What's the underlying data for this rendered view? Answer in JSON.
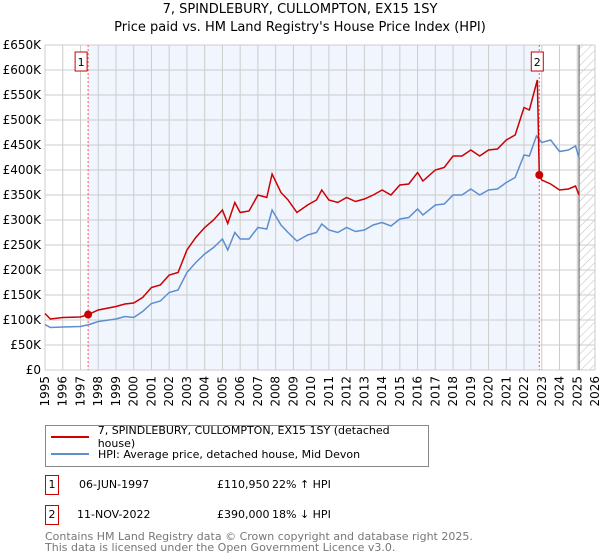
{
  "chart_data": {
    "type": "line",
    "title": "7, SPINDLEBURY, CULLOMPTON, EX15 1SY",
    "subtitle": "Price paid vs. HM Land Registry's House Price Index (HPI)",
    "xlim": [
      1995,
      2026
    ],
    "ylim": [
      0,
      650000
    ],
    "x_ticks": [
      "1995",
      "1996",
      "1997",
      "1998",
      "1999",
      "2000",
      "2001",
      "2002",
      "2003",
      "2004",
      "2005",
      "2006",
      "2007",
      "2008",
      "2009",
      "2010",
      "2011",
      "2012",
      "2013",
      "2014",
      "2015",
      "2016",
      "2017",
      "2018",
      "2019",
      "2020",
      "2021",
      "2022",
      "2023",
      "2024",
      "2025",
      "2026"
    ],
    "y_ticks": [
      "£0",
      "£50K",
      "£100K",
      "£150K",
      "£200K",
      "£250K",
      "£300K",
      "£350K",
      "£400K",
      "£450K",
      "£500K",
      "£550K",
      "£600K",
      "£650K"
    ],
    "grid": true,
    "legend_position": "bottom",
    "series": [
      {
        "name": "7, SPINDLEBURY, CULLOMPTON, EX15 1SY (detached house)",
        "color": "#cc0000",
        "x": [
          1995,
          1995.3,
          1996,
          1997,
          1997.43,
          1998,
          1999,
          1999.5,
          2000,
          2000.5,
          2001,
          2001.5,
          2002,
          2002.5,
          2003,
          2003.5,
          2004,
          2004.5,
          2005,
          2005.3,
          2005.7,
          2006,
          2006.5,
          2007,
          2007.5,
          2007.8,
          2008.3,
          2008.7,
          2009.2,
          2009.8,
          2010.3,
          2010.6,
          2011,
          2011.5,
          2012,
          2012.5,
          2013,
          2013.5,
          2014,
          2014.5,
          2015,
          2015.5,
          2016,
          2016.3,
          2017,
          2017.5,
          2018,
          2018.5,
          2019,
          2019.5,
          2020,
          2020.5,
          2021,
          2021.5,
          2022,
          2022.3,
          2022.75,
          2022.86,
          2023,
          2023.5,
          2024,
          2024.5,
          2024.9,
          2025.1
        ],
        "y": [
          113000,
          102000,
          105000,
          106000,
          110950,
          120000,
          127000,
          132000,
          134000,
          145000,
          165000,
          170000,
          190000,
          195000,
          240000,
          265000,
          285000,
          300000,
          320000,
          293000,
          335000,
          315000,
          318000,
          350000,
          345000,
          392000,
          355000,
          340000,
          315000,
          330000,
          340000,
          360000,
          340000,
          335000,
          345000,
          337000,
          342000,
          350000,
          360000,
          350000,
          370000,
          372000,
          395000,
          378000,
          400000,
          405000,
          428000,
          428000,
          440000,
          428000,
          440000,
          442000,
          460000,
          470000,
          525000,
          520000,
          580000,
          390000,
          380000,
          372000,
          360000,
          362000,
          368000,
          350000
        ]
      },
      {
        "name": "HPI: Average price, detached house, Mid Devon",
        "color": "#5b8fd0",
        "x": [
          1995,
          1995.3,
          1996,
          1997,
          1997.5,
          1998,
          1999,
          1999.5,
          2000,
          2000.5,
          2001,
          2001.5,
          2002,
          2002.5,
          2003,
          2003.5,
          2004,
          2004.5,
          2005,
          2005.3,
          2005.7,
          2006,
          2006.5,
          2007,
          2007.5,
          2007.8,
          2008.3,
          2008.7,
          2009.2,
          2009.8,
          2010.3,
          2010.6,
          2011,
          2011.5,
          2012,
          2012.5,
          2013,
          2013.5,
          2014,
          2014.5,
          2015,
          2015.5,
          2016,
          2016.3,
          2017,
          2017.5,
          2018,
          2018.5,
          2019,
          2019.5,
          2020,
          2020.5,
          2021,
          2021.5,
          2022,
          2022.3,
          2022.7,
          2023,
          2023.5,
          2024,
          2024.5,
          2024.9,
          2025.1
        ],
        "y": [
          91000,
          85000,
          86000,
          87000,
          91000,
          97000,
          102000,
          107000,
          105000,
          117000,
          133000,
          138000,
          155000,
          160000,
          195000,
          215000,
          232000,
          245000,
          262000,
          240000,
          275000,
          262000,
          262000,
          285000,
          282000,
          320000,
          290000,
          275000,
          258000,
          270000,
          275000,
          292000,
          280000,
          275000,
          285000,
          277000,
          280000,
          290000,
          295000,
          288000,
          302000,
          305000,
          322000,
          310000,
          330000,
          332000,
          350000,
          350000,
          362000,
          350000,
          360000,
          362000,
          375000,
          385000,
          430000,
          428000,
          468000,
          455000,
          460000,
          437000,
          440000,
          448000,
          425000
        ]
      }
    ],
    "annotations": [
      {
        "label": "1",
        "x": 1997.43,
        "y": 110950
      },
      {
        "label": "2",
        "x": 2022.86,
        "y": 390000
      }
    ]
  },
  "sales": [
    {
      "num": "1",
      "date": "06-JUN-1997",
      "price": "£110,950",
      "hpi": "22% ↑ HPI"
    },
    {
      "num": "2",
      "date": "11-NOV-2022",
      "price": "£390,000",
      "hpi": "18% ↓ HPI"
    }
  ],
  "footer": {
    "line1": "Contains HM Land Registry data © Crown copyright and database right 2025.",
    "line2": "This data is licensed under the Open Government Licence v3.0."
  }
}
